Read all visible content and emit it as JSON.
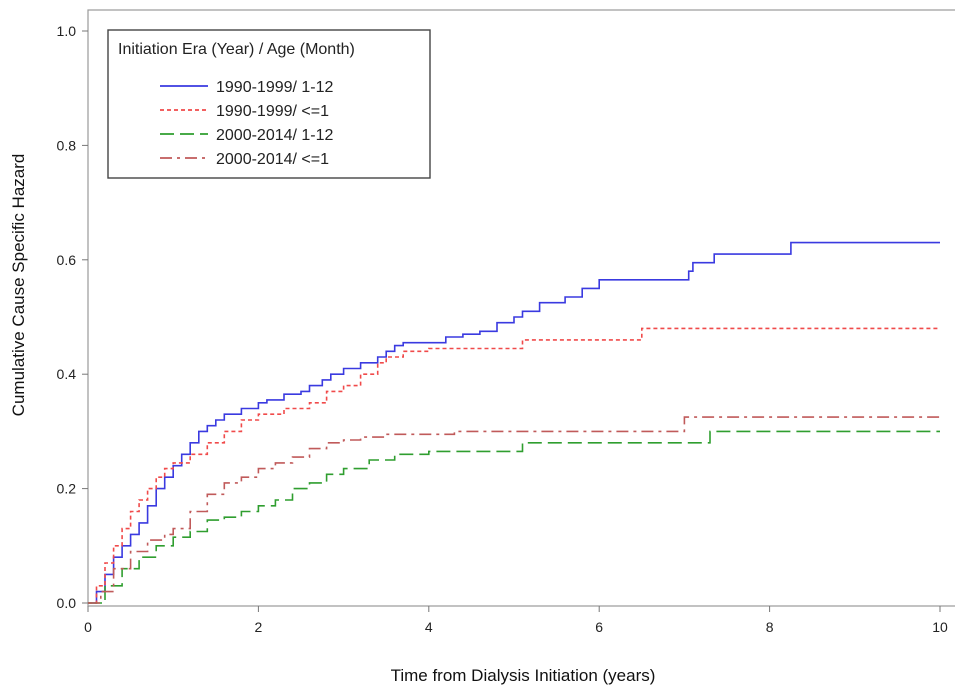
{
  "chart_data": {
    "type": "line",
    "title": "",
    "xlabel": "Time from Dialysis Initiation (years)",
    "ylabel": "Cumulative Cause Specific Hazard",
    "xlim": [
      0,
      10
    ],
    "ylim": [
      0,
      1.0
    ],
    "xticks": [
      0,
      2,
      4,
      6,
      8,
      10
    ],
    "xtick_labels": [
      "0",
      "2",
      "4",
      "6",
      "8",
      "10"
    ],
    "yticks": [
      0.0,
      0.2,
      0.4,
      0.6,
      0.8,
      1.0
    ],
    "ytick_labels": [
      "0.0",
      "0.2",
      "0.4",
      "0.6",
      "0.8",
      "1.0"
    ],
    "grid": false,
    "step": true,
    "legend": {
      "title": "Initiation Era (Year) / Age (Month)",
      "placement": "top-left"
    },
    "series": [
      {
        "name": "1990-1999/ 1-12",
        "color": "#3a3ae0",
        "dash": "solid",
        "x": [
          0,
          0.1,
          0.2,
          0.3,
          0.4,
          0.5,
          0.6,
          0.7,
          0.8,
          0.9,
          1.0,
          1.1,
          1.2,
          1.3,
          1.4,
          1.5,
          1.6,
          1.8,
          2.0,
          2.1,
          2.3,
          2.5,
          2.6,
          2.75,
          2.85,
          3.0,
          3.2,
          3.4,
          3.5,
          3.6,
          3.7,
          4.2,
          4.4,
          4.6,
          4.8,
          5.0,
          5.1,
          5.3,
          5.6,
          5.8,
          6.0,
          6.5,
          7.05,
          7.1,
          7.35,
          8.25,
          10.0
        ],
        "values": [
          0.0,
          0.02,
          0.05,
          0.08,
          0.1,
          0.12,
          0.14,
          0.17,
          0.2,
          0.22,
          0.24,
          0.26,
          0.28,
          0.3,
          0.31,
          0.32,
          0.33,
          0.34,
          0.35,
          0.355,
          0.365,
          0.37,
          0.38,
          0.39,
          0.4,
          0.41,
          0.42,
          0.43,
          0.44,
          0.45,
          0.455,
          0.465,
          0.47,
          0.475,
          0.49,
          0.5,
          0.51,
          0.525,
          0.535,
          0.55,
          0.565,
          0.565,
          0.58,
          0.595,
          0.61,
          0.63,
          0.63
        ]
      },
      {
        "name": "1990-1999/ <=1",
        "color": "#f04a4a",
        "dash": "dotted",
        "x": [
          0,
          0.1,
          0.2,
          0.3,
          0.4,
          0.5,
          0.6,
          0.7,
          0.8,
          0.9,
          1.0,
          1.2,
          1.4,
          1.6,
          1.8,
          2.0,
          2.3,
          2.6,
          2.8,
          3.0,
          3.2,
          3.4,
          3.5,
          3.7,
          4.0,
          5.1,
          6.5,
          10.0
        ],
        "values": [
          0.0,
          0.03,
          0.07,
          0.1,
          0.13,
          0.16,
          0.18,
          0.2,
          0.22,
          0.235,
          0.245,
          0.26,
          0.28,
          0.3,
          0.32,
          0.33,
          0.34,
          0.35,
          0.37,
          0.38,
          0.4,
          0.42,
          0.43,
          0.44,
          0.445,
          0.46,
          0.48,
          0.48
        ]
      },
      {
        "name": "2000-2014/ 1-12",
        "color": "#2f9e2f",
        "dash": "long-dash",
        "x": [
          0,
          0.2,
          0.4,
          0.6,
          0.8,
          1.0,
          1.2,
          1.4,
          1.6,
          1.8,
          2.0,
          2.2,
          2.4,
          2.6,
          2.8,
          3.0,
          3.3,
          3.6,
          4.0,
          5.1,
          7.3,
          10.0
        ],
        "values": [
          0.0,
          0.03,
          0.06,
          0.08,
          0.1,
          0.115,
          0.125,
          0.145,
          0.15,
          0.16,
          0.17,
          0.18,
          0.2,
          0.21,
          0.225,
          0.235,
          0.25,
          0.26,
          0.265,
          0.28,
          0.3,
          0.3
        ]
      },
      {
        "name": "2000-2014/ <=1",
        "color": "#c05a5a",
        "dash": "dash-dot",
        "x": [
          0,
          0.15,
          0.3,
          0.5,
          0.7,
          0.9,
          1.0,
          1.2,
          1.4,
          1.6,
          1.8,
          2.0,
          2.2,
          2.4,
          2.6,
          2.8,
          3.0,
          3.2,
          3.5,
          4.3,
          7.0,
          10.0
        ],
        "values": [
          0.0,
          0.02,
          0.06,
          0.09,
          0.11,
          0.12,
          0.13,
          0.16,
          0.19,
          0.21,
          0.22,
          0.235,
          0.245,
          0.255,
          0.27,
          0.28,
          0.285,
          0.29,
          0.295,
          0.3,
          0.325,
          0.325
        ]
      }
    ]
  }
}
